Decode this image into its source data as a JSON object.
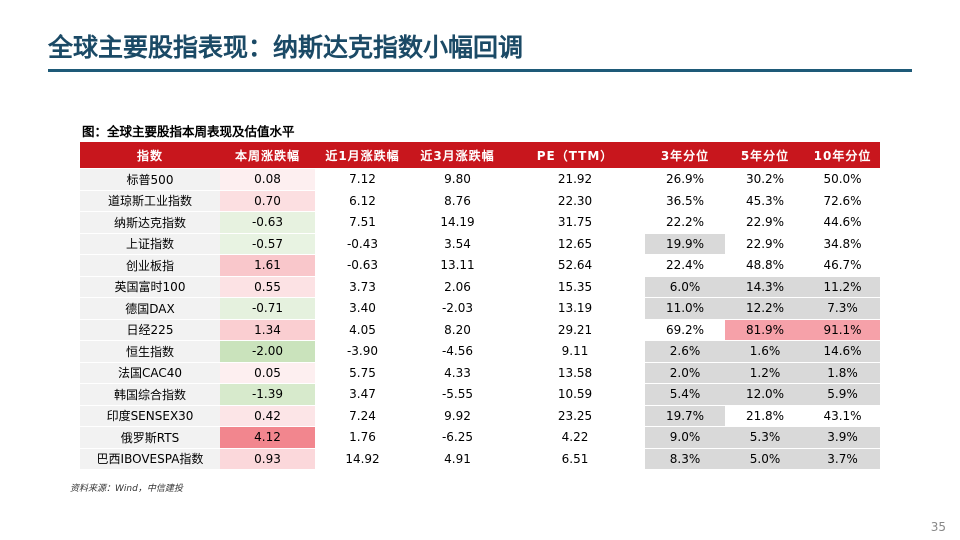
{
  "header": {
    "title": "全球主要股指表现：纳斯达克指数小幅回调"
  },
  "caption": "图：全球主要股指本周表现及估值水平",
  "table": {
    "columns": [
      "指数",
      "本周涨跌幅",
      "近1月涨跌幅",
      "近3月涨跌幅",
      "PE（TTM）",
      "3年分位",
      "5年分位",
      "10年分位"
    ],
    "rows": [
      [
        "标普500",
        "0.08",
        "7.12",
        "9.80",
        "21.92",
        "26.9%",
        "30.2%",
        "50.0%"
      ],
      [
        "道琼斯工业指数",
        "0.70",
        "6.12",
        "8.76",
        "22.30",
        "36.5%",
        "45.3%",
        "72.6%"
      ],
      [
        "纳斯达克指数",
        "-0.63",
        "7.51",
        "14.19",
        "31.75",
        "22.2%",
        "22.9%",
        "44.6%"
      ],
      [
        "上证指数",
        "-0.57",
        "-0.43",
        "3.54",
        "12.65",
        "19.9%",
        "22.9%",
        "34.8%"
      ],
      [
        "创业板指",
        "1.61",
        "-0.63",
        "13.11",
        "52.64",
        "22.4%",
        "48.8%",
        "46.7%"
      ],
      [
        "英国富时100",
        "0.55",
        "3.73",
        "2.06",
        "15.35",
        "6.0%",
        "14.3%",
        "11.2%"
      ],
      [
        "德国DAX",
        "-0.71",
        "3.40",
        "-2.03",
        "13.19",
        "11.0%",
        "12.2%",
        "7.3%"
      ],
      [
        "日经225",
        "1.34",
        "4.05",
        "8.20",
        "29.21",
        "69.2%",
        "81.9%",
        "91.1%"
      ],
      [
        "恒生指数",
        "-2.00",
        "-3.90",
        "-4.56",
        "9.11",
        "2.6%",
        "1.6%",
        "14.6%"
      ],
      [
        "法国CAC40",
        "0.05",
        "5.75",
        "4.33",
        "13.58",
        "2.0%",
        "1.2%",
        "1.8%"
      ],
      [
        "韩国综合指数",
        "-1.39",
        "3.47",
        "-5.55",
        "10.59",
        "5.4%",
        "12.0%",
        "5.9%"
      ],
      [
        "印度SENSEX30",
        "0.42",
        "7.24",
        "9.92",
        "23.25",
        "19.7%",
        "21.8%",
        "43.1%"
      ],
      [
        "俄罗斯RTS",
        "4.12",
        "1.76",
        "-6.25",
        "4.22",
        "9.0%",
        "5.3%",
        "3.9%"
      ],
      [
        "巴西IBOVESPA指数",
        "0.93",
        "14.92",
        "4.91",
        "6.51",
        "8.3%",
        "5.0%",
        "3.7%"
      ]
    ]
  },
  "source": "资料来源：Wind，中信建投",
  "page_number": "35"
}
